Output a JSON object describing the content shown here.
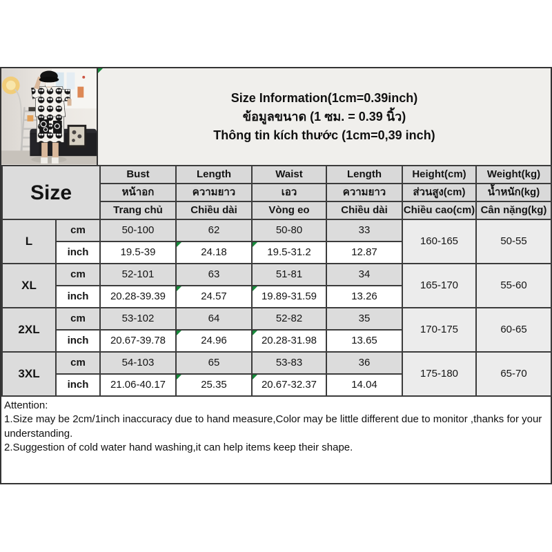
{
  "title": {
    "line1": "Size Information(1cm=0.39inch)",
    "line2": "ข้อมูลขนาด (1 ซม. = 0.39 นิ้ว)",
    "line3": "Thông tin kích thước (1cm=0,39 inch)"
  },
  "photo": {
    "description": "model wearing black-and-white cartoon print shirt and shorts set"
  },
  "table": {
    "size_label": "Size",
    "unit_cm": "cm",
    "unit_inch": "inch",
    "columns": [
      {
        "en": "Bust",
        "th": "หน้าอก",
        "vi": "Trang chủ"
      },
      {
        "en": "Length",
        "th": "ความยาว",
        "vi": "Chiều dài"
      },
      {
        "en": "Waist",
        "th": "เอว",
        "vi": "Vòng eo"
      },
      {
        "en": "Length",
        "th": "ความยาว",
        "vi": "Chiều dài"
      },
      {
        "en": "Height(cm)",
        "th": "ส่วนสูง(cm)",
        "vi": "Chiều cao(cm)"
      },
      {
        "en": "Weight(kg)",
        "th": "น้ำหนัก(kg)",
        "vi": "Cân nặng(kg)"
      }
    ],
    "rows": [
      {
        "size": "L",
        "cm": [
          "50-100",
          "62",
          "50-80",
          "33"
        ],
        "inch": [
          "19.5-39",
          "24.18",
          "19.5-31.2",
          "12.87"
        ],
        "height": "160-165",
        "weight": "50-55"
      },
      {
        "size": "XL",
        "cm": [
          "52-101",
          "63",
          "51-81",
          "34"
        ],
        "inch": [
          "20.28-39.39",
          "24.57",
          "19.89-31.59",
          "13.26"
        ],
        "height": "165-170",
        "weight": "55-60"
      },
      {
        "size": "2XL",
        "cm": [
          "53-102",
          "64",
          "52-82",
          "35"
        ],
        "inch": [
          "20.67-39.78",
          "24.96",
          "20.28-31.98",
          "13.65"
        ],
        "height": "170-175",
        "weight": "60-65"
      },
      {
        "size": "3XL",
        "cm": [
          "54-103",
          "65",
          "53-83",
          "36"
        ],
        "inch": [
          "21.06-40.17",
          "25.35",
          "20.67-32.37",
          "14.04"
        ],
        "height": "175-180",
        "weight": "65-70"
      }
    ],
    "green_flag_inch_cols": [
      1,
      2
    ],
    "title_cell_flag": true
  },
  "attention": {
    "heading": "Attention:",
    "lines": [
      "1.Size may be 2cm/1inch inaccuracy due to hand measure,Color may be little different due to monitor ,thanks for your understanding.",
      "2.Suggestion of cold water hand washing,it can help items keep their shape."
    ]
  },
  "colors": {
    "grid_border": "#3b3b3b",
    "header_gray": "#d9d9d9",
    "cm_row_gray": "#dcdcdc",
    "merged_gray": "#ececec",
    "title_bg": "#f0efec",
    "flag_green": "#168a3a"
  }
}
